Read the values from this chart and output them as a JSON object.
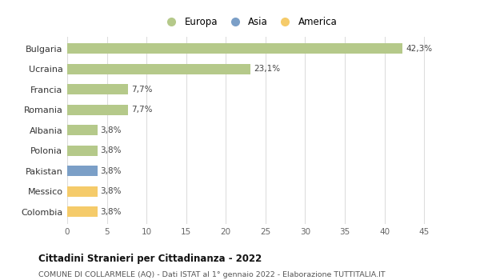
{
  "categories": [
    "Bulgaria",
    "Ucraina",
    "Francia",
    "Romania",
    "Albania",
    "Polonia",
    "Pakistan",
    "Messico",
    "Colombia"
  ],
  "values": [
    42.3,
    23.1,
    7.7,
    7.7,
    3.8,
    3.8,
    3.8,
    3.8,
    3.8
  ],
  "labels": [
    "42,3%",
    "23,1%",
    "7,7%",
    "7,7%",
    "3,8%",
    "3,8%",
    "3,8%",
    "3,8%",
    "3,8%"
  ],
  "colors": [
    "#b5c98a",
    "#b5c98a",
    "#b5c98a",
    "#b5c98a",
    "#b5c98a",
    "#b5c98a",
    "#7b9fc7",
    "#f5cb6a",
    "#f5cb6a"
  ],
  "legend": [
    {
      "label": "Europa",
      "color": "#b5c98a"
    },
    {
      "label": "Asia",
      "color": "#7b9fc7"
    },
    {
      "label": "America",
      "color": "#f5cb6a"
    }
  ],
  "xlim": [
    0,
    46
  ],
  "xticks": [
    0,
    5,
    10,
    15,
    20,
    25,
    30,
    35,
    40,
    45
  ],
  "title": "Cittadini Stranieri per Cittadinanza - 2022",
  "subtitle": "COMUNE DI COLLARMELE (AQ) - Dati ISTAT al 1° gennaio 2022 - Elaborazione TUTTITALIA.IT",
  "bg_color": "#ffffff",
  "grid_color": "#dddddd",
  "bar_height": 0.5
}
